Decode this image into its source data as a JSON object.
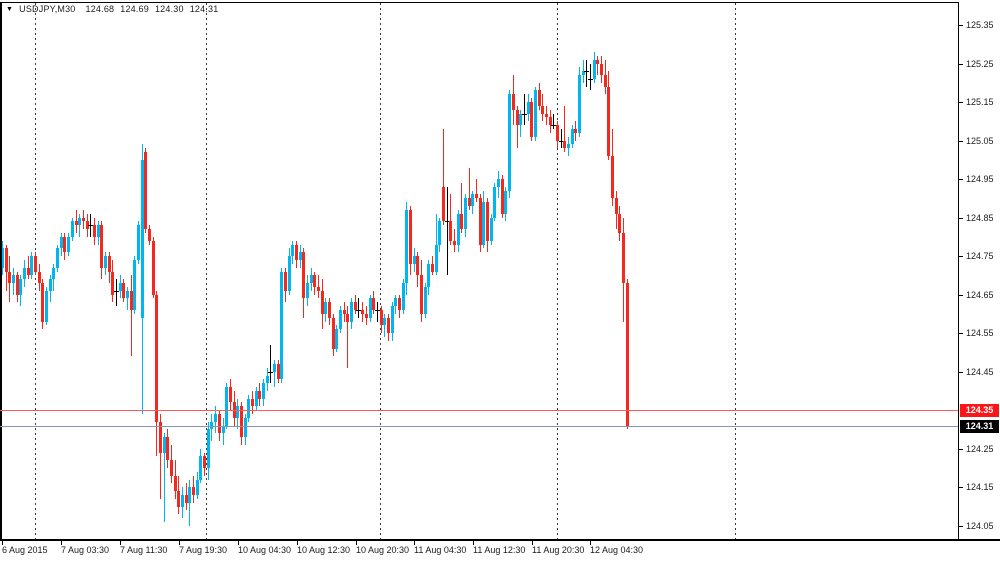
{
  "title_bar": {
    "dropdown_icon": "filled-down-triangle",
    "symbol_period": "USDJPY,M30",
    "open": "124.68",
    "high": "124.69",
    "low": "124.30",
    "close": "124.31"
  },
  "colors": {
    "bg": "#ffffff",
    "border": "#000000",
    "bull": "#00b6f0",
    "bear": "#f5281e",
    "doji": "#000000",
    "grid": "#3a3a3a",
    "axis_text": "#1a1a1a",
    "badge_fg": "#ffffff"
  },
  "chart_data": {
    "type": "candlestick",
    "symbol": "USDJPY",
    "timeframe": "M30",
    "title": "USDJPY,M30",
    "last_bar": {
      "open": 124.68,
      "high": 124.69,
      "low": 124.3,
      "close": 124.31
    },
    "ylim": [
      124.01,
      125.41
    ],
    "grid": "vertical-dashed-only",
    "price_tick_labels": [
      "125.35",
      "125.25",
      "125.15",
      "125.05",
      "124.95",
      "124.85",
      "124.75",
      "124.65",
      "124.55",
      "124.45",
      "124.25",
      "124.15",
      "124.05"
    ],
    "time_ticks": [
      {
        "label": "6 Aug 2015",
        "x": 2
      },
      {
        "label": "7 Aug 03:30",
        "x": 61
      },
      {
        "label": "7 Aug 11:30",
        "x": 120
      },
      {
        "label": "7 Aug 19:30",
        "x": 179
      },
      {
        "label": "10 Aug 04:30",
        "x": 238
      },
      {
        "label": "10 Aug 12:30",
        "x": 297
      },
      {
        "label": "10 Aug 20:30",
        "x": 356
      },
      {
        "label": "11 Aug 04:30",
        "x": 414
      },
      {
        "label": "11 Aug 12:30",
        "x": 473
      },
      {
        "label": "11 Aug 20:30",
        "x": 532
      },
      {
        "label": "12 Aug 04:30",
        "x": 590
      }
    ],
    "vgrid_x": [
      35,
      206,
      380,
      557,
      735
    ],
    "hlines": [
      {
        "price": 124.35,
        "label": "124.35",
        "line_color": "#ff5a5a",
        "badge_bg": "#fb1717",
        "role": "horizontal-line-object"
      },
      {
        "price": 124.31,
        "label": "124.31",
        "line_color": "#8496ad",
        "badge_bg": "#000000",
        "role": "bid-price-line"
      }
    ],
    "bars_start_x": 2,
    "bar_step": 3.675,
    "candles": [
      [
        124.72,
        124.79,
        124.7,
        124.77
      ],
      [
        124.77,
        124.78,
        124.66,
        124.71
      ],
      [
        124.71,
        124.75,
        124.63,
        124.68
      ],
      [
        124.68,
        124.72,
        124.65,
        124.7
      ],
      [
        124.7,
        124.71,
        124.63,
        124.65
      ],
      [
        124.65,
        124.7,
        124.62,
        124.69
      ],
      [
        124.69,
        124.74,
        124.67,
        124.72
      ],
      [
        124.72,
        124.75,
        124.69,
        124.7
      ],
      [
        124.7,
        124.76,
        124.69,
        124.75
      ],
      [
        124.75,
        124.76,
        124.7,
        124.71
      ],
      [
        124.71,
        124.73,
        124.66,
        124.68
      ],
      [
        124.68,
        124.69,
        124.56,
        124.58
      ],
      [
        124.58,
        124.67,
        124.57,
        124.66
      ],
      [
        124.66,
        124.7,
        124.63,
        124.69
      ],
      [
        124.69,
        124.73,
        124.66,
        124.72
      ],
      [
        124.72,
        124.78,
        124.71,
        124.77
      ],
      [
        124.77,
        124.81,
        124.75,
        124.8
      ],
      [
        124.8,
        124.81,
        124.74,
        124.76
      ],
      [
        124.76,
        124.81,
        124.75,
        124.8
      ],
      [
        124.8,
        124.85,
        124.79,
        124.84
      ],
      [
        124.84,
        124.87,
        124.81,
        124.83
      ],
      [
        124.83,
        124.86,
        124.8,
        124.85
      ],
      [
        124.85,
        124.87,
        124.82,
        124.84
      ],
      [
        124.84,
        124.86,
        124.8,
        124.82
      ],
      [
        124.83,
        124.86,
        124.8,
        124.83
      ],
      [
        124.83,
        124.85,
        124.78,
        124.8
      ],
      [
        124.8,
        124.84,
        124.78,
        124.83
      ],
      [
        124.83,
        124.84,
        124.69,
        124.72
      ],
      [
        124.72,
        124.76,
        124.7,
        124.75
      ],
      [
        124.75,
        124.76,
        124.68,
        124.71
      ],
      [
        124.71,
        124.74,
        124.63,
        124.65
      ],
      [
        124.66,
        124.69,
        124.62,
        124.66
      ],
      [
        124.66,
        124.7,
        124.64,
        124.68
      ],
      [
        124.68,
        124.69,
        124.63,
        124.64
      ],
      [
        124.64,
        124.67,
        124.61,
        124.66
      ],
      [
        124.66,
        124.7,
        124.49,
        124.61
      ],
      [
        124.61,
        124.75,
        124.6,
        124.74
      ],
      [
        124.74,
        124.84,
        124.73,
        124.83
      ],
      [
        124.59,
        125.04,
        124.34,
        125.0
      ],
      [
        125.02,
        125.03,
        124.81,
        124.82
      ],
      [
        124.82,
        124.83,
        124.78,
        124.79
      ],
      [
        124.79,
        124.8,
        124.64,
        124.65
      ],
      [
        124.65,
        124.66,
        124.23,
        124.32
      ],
      [
        124.32,
        124.34,
        124.12,
        124.24
      ],
      [
        124.24,
        124.29,
        124.06,
        124.28
      ],
      [
        124.28,
        124.3,
        124.2,
        124.22
      ],
      [
        124.22,
        124.26,
        124.16,
        124.18
      ],
      [
        124.18,
        124.22,
        124.12,
        124.14
      ],
      [
        124.14,
        124.18,
        124.08,
        124.1
      ],
      [
        124.1,
        124.15,
        124.07,
        124.13
      ],
      [
        124.13,
        124.16,
        124.09,
        124.11
      ],
      [
        124.11,
        124.17,
        124.05,
        124.15
      ],
      [
        124.15,
        124.18,
        124.11,
        124.13
      ],
      [
        124.13,
        124.19,
        124.12,
        124.17
      ],
      [
        124.17,
        124.25,
        124.16,
        124.23
      ],
      [
        124.23,
        124.24,
        124.18,
        124.2
      ],
      [
        124.2,
        124.32,
        124.17,
        124.3
      ],
      [
        124.3,
        124.34,
        124.27,
        124.32
      ],
      [
        124.32,
        124.36,
        124.29,
        124.34
      ],
      [
        124.34,
        124.35,
        124.27,
        124.29
      ],
      [
        124.29,
        124.33,
        124.26,
        124.31
      ],
      [
        124.31,
        124.42,
        124.3,
        124.41
      ],
      [
        124.41,
        124.43,
        124.35,
        124.37
      ],
      [
        124.37,
        124.4,
        124.31,
        124.33
      ],
      [
        124.33,
        124.38,
        124.3,
        124.36
      ],
      [
        124.36,
        124.37,
        124.26,
        124.28
      ],
      [
        124.28,
        124.34,
        124.26,
        124.33
      ],
      [
        124.33,
        124.39,
        124.32,
        124.38
      ],
      [
        124.38,
        124.4,
        124.34,
        124.36
      ],
      [
        124.36,
        124.41,
        124.35,
        124.4
      ],
      [
        124.4,
        124.42,
        124.36,
        124.38
      ],
      [
        124.38,
        124.43,
        124.36,
        124.42
      ],
      [
        124.42,
        124.46,
        124.4,
        124.44
      ],
      [
        124.45,
        124.52,
        124.42,
        124.45
      ],
      [
        124.45,
        124.48,
        124.41,
        124.47
      ],
      [
        124.47,
        124.48,
        124.42,
        124.43
      ],
      [
        124.43,
        124.72,
        124.42,
        124.71
      ],
      [
        124.71,
        124.72,
        124.63,
        124.66
      ],
      [
        124.66,
        124.77,
        124.65,
        124.75
      ],
      [
        124.75,
        124.79,
        124.73,
        124.78
      ],
      [
        124.78,
        124.79,
        124.72,
        124.74
      ],
      [
        124.74,
        124.78,
        124.72,
        124.76
      ],
      [
        124.76,
        124.77,
        124.59,
        124.64
      ],
      [
        124.64,
        124.7,
        124.62,
        124.68
      ],
      [
        124.68,
        124.72,
        124.66,
        124.7
      ],
      [
        124.7,
        124.71,
        124.65,
        124.67
      ],
      [
        124.67,
        124.7,
        124.64,
        124.66
      ],
      [
        124.66,
        124.69,
        124.56,
        124.6
      ],
      [
        124.6,
        124.64,
        124.58,
        124.63
      ],
      [
        124.63,
        124.64,
        124.57,
        124.59
      ],
      [
        124.59,
        124.6,
        124.49,
        124.51
      ],
      [
        124.51,
        124.57,
        124.5,
        124.56
      ],
      [
        124.56,
        124.62,
        124.55,
        124.61
      ],
      [
        124.61,
        124.63,
        124.58,
        124.6
      ],
      [
        124.6,
        124.62,
        124.46,
        124.58
      ],
      [
        124.58,
        124.64,
        124.56,
        124.63
      ],
      [
        124.63,
        124.65,
        124.6,
        124.61
      ],
      [
        124.61,
        124.64,
        124.59,
        124.61
      ],
      [
        124.61,
        124.63,
        124.58,
        124.6
      ],
      [
        124.6,
        124.62,
        124.57,
        124.59
      ],
      [
        124.59,
        124.65,
        124.58,
        124.64
      ],
      [
        124.64,
        124.66,
        124.6,
        124.61
      ],
      [
        124.61,
        124.63,
        124.58,
        124.61
      ],
      [
        124.61,
        124.62,
        124.55,
        124.57
      ],
      [
        124.57,
        124.6,
        124.54,
        124.59
      ],
      [
        124.59,
        124.6,
        124.53,
        124.55
      ],
      [
        124.55,
        124.63,
        124.53,
        124.62
      ],
      [
        124.62,
        124.65,
        124.6,
        124.64
      ],
      [
        124.64,
        124.65,
        124.59,
        124.61
      ],
      [
        124.61,
        124.69,
        124.6,
        124.68
      ],
      [
        124.68,
        124.89,
        124.65,
        124.87
      ],
      [
        124.87,
        124.88,
        124.7,
        124.73
      ],
      [
        124.73,
        124.77,
        124.71,
        124.75
      ],
      [
        124.75,
        124.76,
        124.67,
        124.7
      ],
      [
        124.7,
        124.74,
        124.58,
        124.6
      ],
      [
        124.6,
        124.68,
        124.59,
        124.67
      ],
      [
        124.67,
        124.74,
        124.65,
        124.73
      ],
      [
        124.73,
        124.75,
        124.7,
        124.71
      ],
      [
        124.71,
        124.86,
        124.7,
        124.78
      ],
      [
        124.78,
        124.85,
        124.76,
        124.84
      ],
      [
        124.93,
        125.08,
        124.83,
        124.84
      ],
      [
        124.84,
        124.93,
        124.7,
        124.84
      ],
      [
        124.84,
        124.91,
        124.78,
        124.79
      ],
      [
        124.79,
        124.82,
        124.76,
        124.78
      ],
      [
        124.78,
        124.87,
        124.76,
        124.86
      ],
      [
        124.86,
        124.94,
        124.81,
        124.82
      ],
      [
        124.82,
        124.91,
        124.8,
        124.9
      ],
      [
        124.9,
        124.98,
        124.87,
        124.88
      ],
      [
        124.88,
        124.92,
        124.86,
        124.91
      ],
      [
        124.91,
        124.95,
        124.89,
        124.9
      ],
      [
        124.9,
        124.91,
        124.76,
        124.78
      ],
      [
        124.78,
        124.92,
        124.77,
        124.89
      ],
      [
        124.89,
        124.9,
        124.76,
        124.79
      ],
      [
        124.79,
        124.86,
        124.78,
        124.85
      ],
      [
        124.85,
        124.94,
        124.84,
        124.93
      ],
      [
        124.93,
        124.97,
        124.9,
        124.95
      ],
      [
        124.95,
        124.96,
        124.85,
        124.86
      ],
      [
        124.86,
        124.93,
        124.84,
        124.92
      ],
      [
        124.92,
        125.18,
        124.9,
        125.17
      ],
      [
        125.17,
        125.22,
        125.09,
        125.13
      ],
      [
        125.13,
        125.14,
        125.03,
        125.09
      ],
      [
        125.09,
        125.13,
        125.06,
        125.12
      ],
      [
        125.12,
        125.17,
        125.09,
        125.12
      ],
      [
        125.12,
        125.17,
        125.1,
        125.15
      ],
      [
        125.15,
        125.16,
        125.05,
        125.06
      ],
      [
        125.06,
        125.19,
        125.05,
        125.18
      ],
      [
        125.18,
        125.2,
        125.13,
        125.14
      ],
      [
        125.14,
        125.17,
        125.1,
        125.12
      ],
      [
        125.12,
        125.14,
        125.09,
        125.11
      ],
      [
        125.11,
        125.13,
        125.07,
        125.09
      ],
      [
        125.09,
        125.12,
        125.08,
        125.09
      ],
      [
        125.09,
        125.1,
        125.03,
        125.05
      ],
      [
        125.05,
        125.08,
        125.03,
        125.05
      ],
      [
        125.05,
        125.14,
        125.02,
        125.03
      ],
      [
        125.03,
        125.06,
        125.01,
        125.04
      ],
      [
        125.04,
        125.09,
        125.03,
        125.08
      ],
      [
        125.08,
        125.1,
        125.05,
        125.07
      ],
      [
        125.07,
        125.24,
        125.06,
        125.22
      ],
      [
        125.22,
        125.26,
        125.2,
        125.23
      ],
      [
        125.23,
        125.26,
        125.19,
        125.23
      ],
      [
        125.21,
        125.25,
        125.18,
        125.21
      ],
      [
        125.21,
        125.28,
        125.2,
        125.26
      ],
      [
        125.26,
        125.27,
        125.22,
        125.25
      ],
      [
        125.25,
        125.27,
        125.2,
        125.22
      ],
      [
        125.22,
        125.26,
        125.17,
        125.19
      ],
      [
        125.19,
        125.23,
        125.0,
        125.01
      ],
      [
        125.01,
        125.08,
        124.88,
        124.9
      ],
      [
        124.9,
        124.92,
        124.82,
        124.86
      ],
      [
        124.86,
        124.88,
        124.79,
        124.81
      ],
      [
        124.81,
        124.85,
        124.58,
        124.68
      ],
      [
        124.68,
        124.69,
        124.3,
        124.31
      ]
    ]
  }
}
